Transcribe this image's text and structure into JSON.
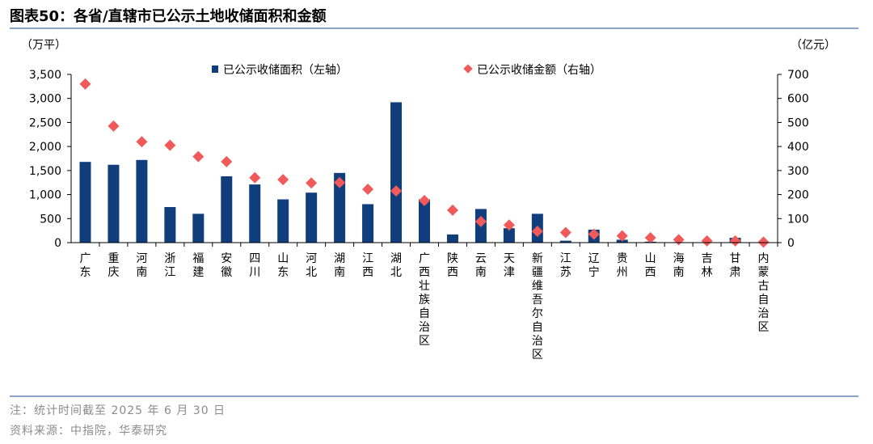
{
  "header": {
    "title": "图表50：各省/直辖市已公示土地收储面积和金额"
  },
  "footer": {
    "note": "注：统计时间截至 2025 年 6 月 30 日",
    "source": "资料来源：中指院，华泰研究"
  },
  "colors": {
    "bar": "#103d7c",
    "marker": "#f05a5a",
    "rule": "#8aa5c6"
  },
  "chart_data": {
    "type": "bar",
    "title": "",
    "left_unit": "（万平）",
    "right_unit": "（亿元）",
    "y_left_ticks": [
      "0",
      "500",
      "1,000",
      "1,500",
      "2,000",
      "2,500",
      "3,000",
      "3,500"
    ],
    "y_right_ticks": [
      "0",
      "100",
      "200",
      "300",
      "400",
      "500",
      "600",
      "700"
    ],
    "ylim_left": [
      0,
      3500
    ],
    "ylim_right": [
      0,
      700
    ],
    "legend_position": "top",
    "categories": [
      "广东",
      "重庆",
      "河南",
      "浙江",
      "福建",
      "安徽",
      "四川",
      "山东",
      "河北",
      "湖南",
      "江西",
      "湖北",
      "广西壮族自治区",
      "陕西",
      "云南",
      "天津",
      "新疆维吾尔自治区",
      "江苏",
      "辽宁",
      "贵州",
      "山西",
      "海南",
      "吉林",
      "甘肃",
      "内蒙古自治区"
    ],
    "series": [
      {
        "name": "已公示收储面积（左轴）",
        "type": "bar",
        "axis": "left",
        "values": [
          1680,
          1620,
          1720,
          740,
          600,
          1380,
          1210,
          900,
          1040,
          1450,
          800,
          2920,
          900,
          170,
          700,
          300,
          600,
          40,
          270,
          60,
          20,
          10,
          10,
          100,
          0
        ]
      },
      {
        "name": "已公示收储金额（右轴）",
        "type": "scatter",
        "axis": "right",
        "values": [
          660,
          485,
          420,
          405,
          358,
          337,
          270,
          262,
          248,
          250,
          222,
          215,
          175,
          135,
          88,
          73,
          47,
          42,
          35,
          28,
          20,
          12,
          7,
          7,
          2
        ]
      }
    ]
  }
}
